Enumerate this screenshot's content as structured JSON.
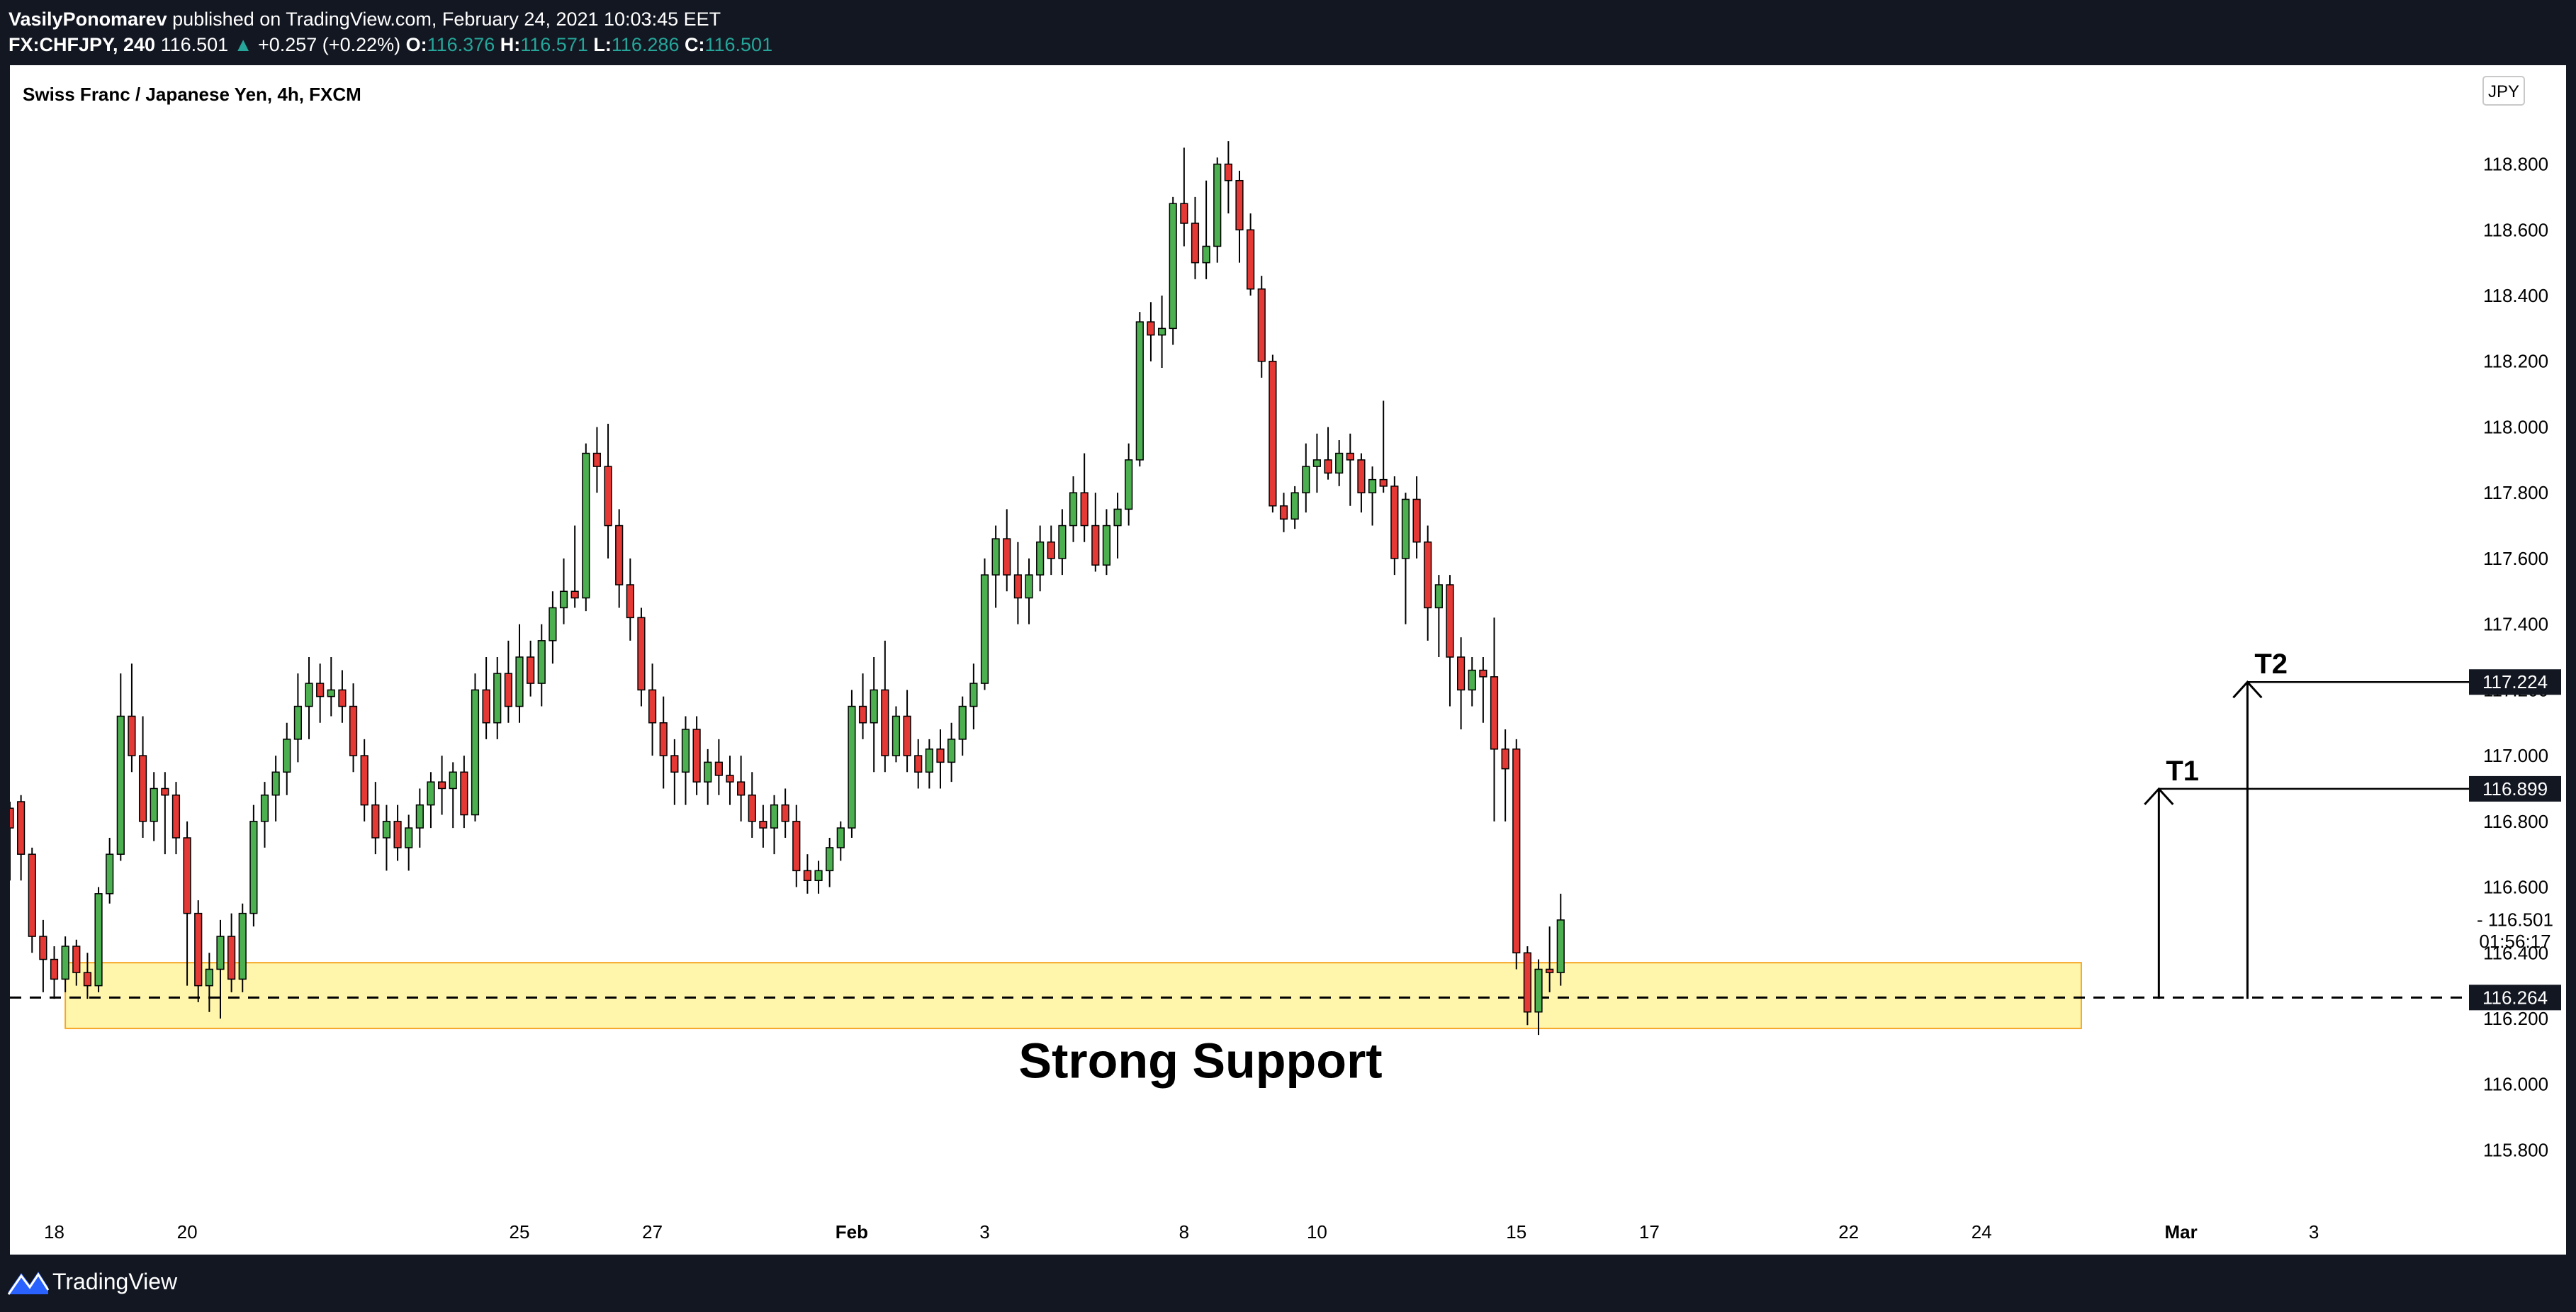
{
  "header": {
    "author": "VasilyPonomarev",
    "published_text": " published on TradingView.com, February 24, 2021 10:03:45 EET",
    "symbol": "FX:CHFJPY, 240",
    "last_price": "116.501",
    "change_arrow": "▲",
    "change": "+0.257 (+0.22%)",
    "open_label": "O:",
    "open": "116.376",
    "high_label": "H:",
    "high": "116.571",
    "low_label": "L:",
    "low": "116.286",
    "close_label": "C:",
    "close": "116.501"
  },
  "footer": {
    "logo_text": "TradingView"
  },
  "colors": {
    "up": "#4caf50",
    "down": "#e53935",
    "wick": "#000000",
    "zone_fill": "#fff59d",
    "zone_border": "#f5a623",
    "axis_text": "#000000"
  },
  "chart_data": {
    "type": "candlestick",
    "title": "Swiss Franc / Japanese Yen, 4h, FXCM",
    "currency": "JPY",
    "y_ticks": [
      "115.800",
      "116.000",
      "116.200",
      "116.400",
      "116.600",
      "116.800",
      "117.000",
      "117.200",
      "117.400",
      "117.600",
      "117.800",
      "118.000",
      "118.200",
      "118.400",
      "118.600",
      "118.800"
    ],
    "ylim": [
      115.65,
      118.95
    ],
    "x_ticks": [
      {
        "label": "18",
        "pos": 4
      },
      {
        "label": "20",
        "pos": 16
      },
      {
        "label": "25",
        "pos": 46
      },
      {
        "label": "27",
        "pos": 58
      },
      {
        "label": "Feb",
        "pos": 76
      },
      {
        "label": "3",
        "pos": 88
      },
      {
        "label": "8",
        "pos": 106
      },
      {
        "label": "10",
        "pos": 118
      },
      {
        "label": "15",
        "pos": 136
      },
      {
        "label": "17",
        "pos": 148
      },
      {
        "label": "22",
        "pos": 166
      },
      {
        "label": "24",
        "pos": 178
      },
      {
        "label": "Mar",
        "pos": 196
      },
      {
        "label": "3",
        "pos": 208
      }
    ],
    "xlim": [
      0,
      222
    ],
    "candles": [
      [
        116.84,
        116.86,
        116.62,
        116.78
      ],
      [
        116.86,
        116.88,
        116.62,
        116.7
      ],
      [
        116.7,
        116.72,
        116.4,
        116.45
      ],
      [
        116.45,
        116.5,
        116.28,
        116.38
      ],
      [
        116.38,
        116.42,
        116.26,
        116.32
      ],
      [
        116.32,
        116.45,
        116.28,
        116.42
      ],
      [
        116.42,
        116.44,
        116.3,
        116.34
      ],
      [
        116.34,
        116.4,
        116.26,
        116.3
      ],
      [
        116.3,
        116.6,
        116.28,
        116.58
      ],
      [
        116.58,
        116.75,
        116.55,
        116.7
      ],
      [
        116.7,
        117.25,
        116.68,
        117.12
      ],
      [
        117.12,
        117.28,
        116.95,
        117.0
      ],
      [
        117.0,
        117.12,
        116.75,
        116.8
      ],
      [
        116.8,
        116.95,
        116.74,
        116.9
      ],
      [
        116.9,
        116.95,
        116.7,
        116.88
      ],
      [
        116.88,
        116.92,
        116.7,
        116.75
      ],
      [
        116.75,
        116.8,
        116.3,
        116.52
      ],
      [
        116.52,
        116.56,
        116.25,
        116.3
      ],
      [
        116.3,
        116.4,
        116.22,
        116.35
      ],
      [
        116.35,
        116.5,
        116.2,
        116.45
      ],
      [
        116.45,
        116.52,
        116.28,
        116.32
      ],
      [
        116.32,
        116.55,
        116.28,
        116.52
      ],
      [
        116.52,
        116.85,
        116.48,
        116.8
      ],
      [
        116.8,
        116.92,
        116.72,
        116.88
      ],
      [
        116.88,
        117.0,
        116.8,
        116.95
      ],
      [
        116.95,
        117.1,
        116.88,
        117.05
      ],
      [
        117.05,
        117.25,
        116.98,
        117.15
      ],
      [
        117.15,
        117.3,
        117.05,
        117.22
      ],
      [
        117.22,
        117.28,
        117.1,
        117.18
      ],
      [
        117.18,
        117.3,
        117.12,
        117.2
      ],
      [
        117.2,
        117.26,
        117.1,
        117.15
      ],
      [
        117.15,
        117.22,
        116.95,
        117.0
      ],
      [
        117.0,
        117.05,
        116.8,
        116.85
      ],
      [
        116.85,
        116.92,
        116.7,
        116.75
      ],
      [
        116.75,
        116.85,
        116.65,
        116.8
      ],
      [
        116.8,
        116.85,
        116.68,
        116.72
      ],
      [
        116.72,
        116.82,
        116.65,
        116.78
      ],
      [
        116.78,
        116.9,
        116.72,
        116.85
      ],
      [
        116.85,
        116.95,
        116.78,
        116.92
      ],
      [
        116.92,
        117.0,
        116.82,
        116.9
      ],
      [
        116.9,
        116.98,
        116.78,
        116.95
      ],
      [
        116.95,
        117.0,
        116.78,
        116.82
      ],
      [
        116.82,
        117.25,
        116.8,
        117.2
      ],
      [
        117.2,
        117.3,
        117.05,
        117.1
      ],
      [
        117.1,
        117.3,
        117.05,
        117.25
      ],
      [
        117.25,
        117.35,
        117.1,
        117.15
      ],
      [
        117.15,
        117.4,
        117.1,
        117.3
      ],
      [
        117.3,
        117.35,
        117.18,
        117.22
      ],
      [
        117.22,
        117.4,
        117.15,
        117.35
      ],
      [
        117.35,
        117.5,
        117.28,
        117.45
      ],
      [
        117.45,
        117.6,
        117.4,
        117.5
      ],
      [
        117.5,
        117.7,
        117.45,
        117.48
      ],
      [
        117.48,
        117.95,
        117.44,
        117.92
      ],
      [
        117.92,
        118.0,
        117.8,
        117.88
      ],
      [
        117.88,
        118.01,
        117.6,
        117.7
      ],
      [
        117.7,
        117.75,
        117.45,
        117.52
      ],
      [
        117.52,
        117.6,
        117.35,
        117.42
      ],
      [
        117.42,
        117.45,
        117.15,
        117.2
      ],
      [
        117.2,
        117.28,
        117.0,
        117.1
      ],
      [
        117.1,
        117.18,
        116.9,
        117.0
      ],
      [
        117.0,
        117.05,
        116.85,
        116.95
      ],
      [
        116.95,
        117.12,
        116.85,
        117.08
      ],
      [
        117.08,
        117.12,
        116.88,
        116.92
      ],
      [
        116.92,
        117.02,
        116.85,
        116.98
      ],
      [
        116.98,
        117.05,
        116.88,
        116.94
      ],
      [
        116.94,
        117.0,
        116.85,
        116.92
      ],
      [
        116.92,
        117.0,
        116.8,
        116.88
      ],
      [
        116.88,
        116.95,
        116.75,
        116.8
      ],
      [
        116.8,
        116.85,
        116.72,
        116.78
      ],
      [
        116.78,
        116.88,
        116.7,
        116.85
      ],
      [
        116.85,
        116.9,
        116.75,
        116.8
      ],
      [
        116.8,
        116.85,
        116.6,
        116.65
      ],
      [
        116.65,
        116.7,
        116.58,
        116.62
      ],
      [
        116.62,
        116.68,
        116.58,
        116.65
      ],
      [
        116.65,
        116.75,
        116.6,
        116.72
      ],
      [
        116.72,
        116.8,
        116.68,
        116.78
      ],
      [
        116.78,
        117.2,
        116.75,
        117.15
      ],
      [
        117.15,
        117.25,
        117.05,
        117.1
      ],
      [
        117.1,
        117.3,
        116.95,
        117.2
      ],
      [
        117.2,
        117.35,
        116.95,
        117.0
      ],
      [
        117.0,
        117.15,
        116.98,
        117.12
      ],
      [
        117.12,
        117.2,
        116.95,
        117.0
      ],
      [
        117.0,
        117.05,
        116.9,
        116.95
      ],
      [
        116.95,
        117.05,
        116.9,
        117.02
      ],
      [
        117.02,
        117.08,
        116.9,
        116.98
      ],
      [
        116.98,
        117.1,
        116.92,
        117.05
      ],
      [
        117.05,
        117.18,
        117.0,
        117.15
      ],
      [
        117.15,
        117.28,
        117.08,
        117.22
      ],
      [
        117.22,
        117.6,
        117.2,
        117.55
      ],
      [
        117.55,
        117.7,
        117.45,
        117.66
      ],
      [
        117.66,
        117.75,
        117.5,
        117.55
      ],
      [
        117.55,
        117.65,
        117.4,
        117.48
      ],
      [
        117.48,
        117.6,
        117.4,
        117.55
      ],
      [
        117.55,
        117.7,
        117.5,
        117.65
      ],
      [
        117.65,
        117.7,
        117.55,
        117.6
      ],
      [
        117.6,
        117.75,
        117.55,
        117.7
      ],
      [
        117.7,
        117.85,
        117.65,
        117.8
      ],
      [
        117.8,
        117.92,
        117.65,
        117.7
      ],
      [
        117.7,
        117.8,
        117.56,
        117.58
      ],
      [
        117.58,
        117.75,
        117.55,
        117.7
      ],
      [
        117.7,
        117.8,
        117.6,
        117.75
      ],
      [
        117.75,
        117.95,
        117.7,
        117.9
      ],
      [
        117.9,
        118.35,
        117.88,
        118.32
      ],
      [
        118.32,
        118.38,
        118.2,
        118.28
      ],
      [
        118.28,
        118.4,
        118.18,
        118.3
      ],
      [
        118.3,
        118.7,
        118.25,
        118.68
      ],
      [
        118.68,
        118.85,
        118.55,
        118.62
      ],
      [
        118.62,
        118.7,
        118.45,
        118.5
      ],
      [
        118.5,
        118.75,
        118.45,
        118.55
      ],
      [
        118.55,
        118.82,
        118.5,
        118.8
      ],
      [
        118.8,
        118.87,
        118.65,
        118.75
      ],
      [
        118.75,
        118.78,
        118.5,
        118.6
      ],
      [
        118.6,
        118.65,
        118.4,
        118.42
      ],
      [
        118.42,
        118.46,
        118.15,
        118.2
      ],
      [
        118.2,
        118.22,
        117.74,
        117.76
      ],
      [
        117.76,
        117.8,
        117.68,
        117.72
      ],
      [
        117.72,
        117.82,
        117.69,
        117.8
      ],
      [
        117.8,
        117.95,
        117.74,
        117.88
      ],
      [
        117.88,
        117.98,
        117.8,
        117.9
      ],
      [
        117.9,
        118.0,
        117.84,
        117.86
      ],
      [
        117.86,
        117.96,
        117.82,
        117.92
      ],
      [
        117.92,
        117.98,
        117.76,
        117.9
      ],
      [
        117.9,
        117.92,
        117.74,
        117.8
      ],
      [
        117.8,
        117.88,
        117.7,
        117.84
      ],
      [
        117.84,
        118.08,
        117.8,
        117.82
      ],
      [
        117.82,
        117.85,
        117.55,
        117.6
      ],
      [
        117.6,
        117.8,
        117.4,
        117.78
      ],
      [
        117.78,
        117.85,
        117.6,
        117.65
      ],
      [
        117.65,
        117.7,
        117.35,
        117.45
      ],
      [
        117.45,
        117.55,
        117.3,
        117.52
      ],
      [
        117.52,
        117.55,
        117.15,
        117.3
      ],
      [
        117.3,
        117.36,
        117.08,
        117.2
      ],
      [
        117.2,
        117.3,
        117.15,
        117.26
      ],
      [
        117.26,
        117.3,
        117.1,
        117.24
      ],
      [
        117.24,
        117.42,
        116.8,
        117.02
      ],
      [
        117.02,
        117.08,
        116.8,
        116.96
      ],
      [
        117.02,
        117.05,
        116.35,
        116.4
      ],
      [
        116.4,
        116.42,
        116.18,
        116.22
      ],
      [
        116.22,
        116.38,
        116.15,
        116.35
      ],
      [
        116.35,
        116.48,
        116.28,
        116.34
      ],
      [
        116.34,
        116.58,
        116.3,
        116.5
      ]
    ],
    "support_zone": {
      "low": 116.17,
      "high": 116.37,
      "start_index": 5,
      "end_index": 187
    },
    "support_line": 116.264,
    "annotations": [
      {
        "text": "Strong Support"
      },
      {
        "text": "T1",
        "target": 116.899,
        "from": 116.26
      },
      {
        "text": "T2",
        "target": 117.224,
        "from": 116.26
      }
    ],
    "price_labels": [
      {
        "text": "117.224",
        "value": 117.224
      },
      {
        "text": "116.899",
        "value": 116.899
      },
      {
        "text": "116.264",
        "value": 116.264
      },
      {
        "text": "- 116.501",
        "value": 116.501
      },
      {
        "text": "01:56:17",
        "value": 116.435
      }
    ]
  }
}
